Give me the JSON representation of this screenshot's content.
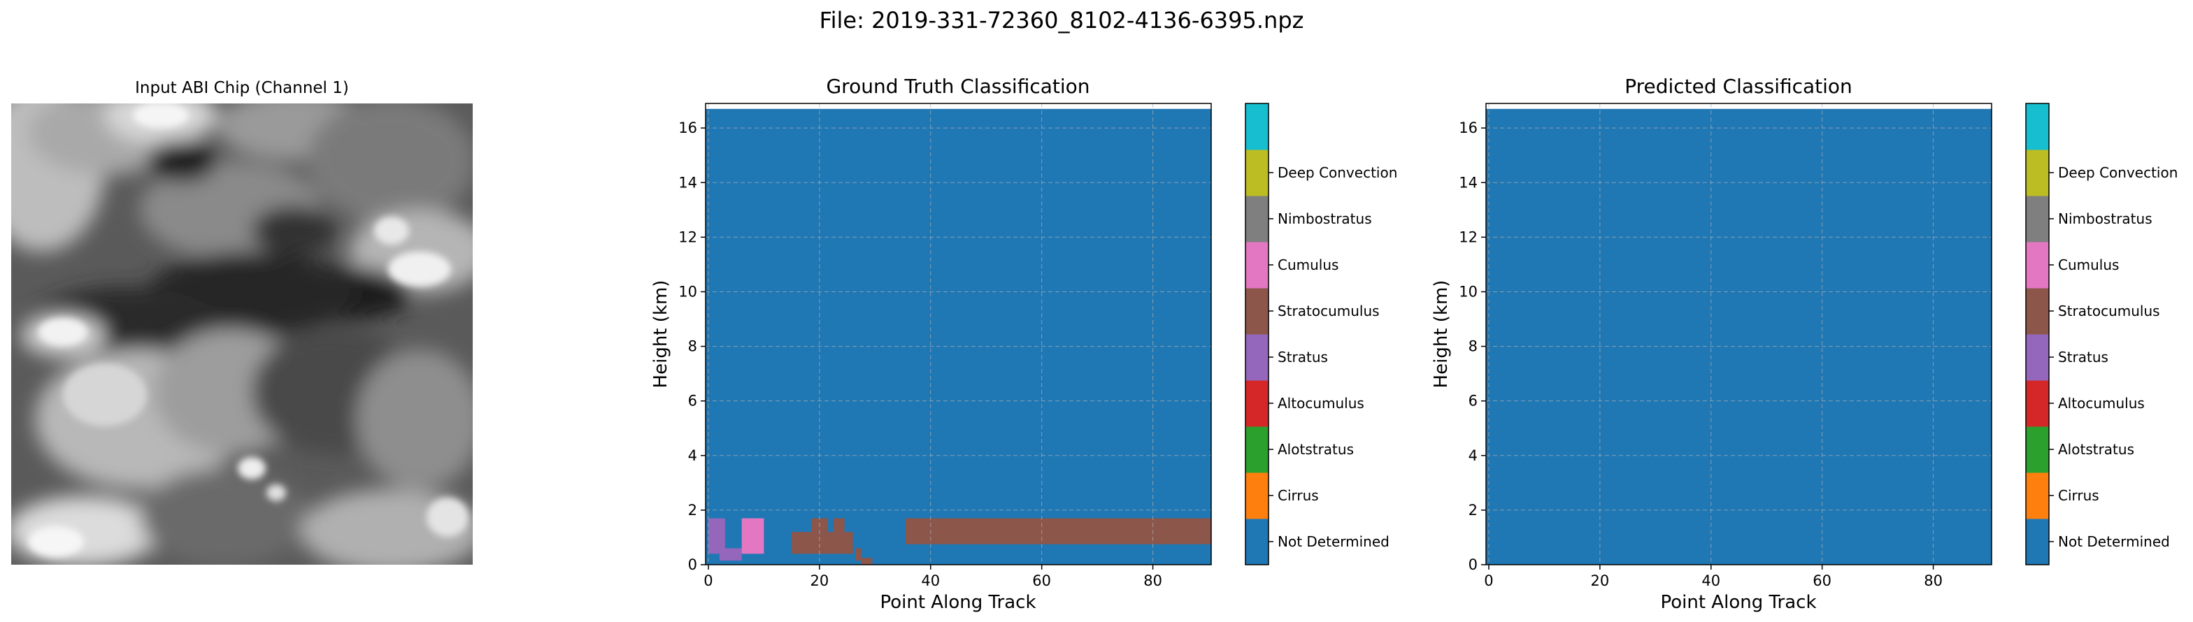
{
  "figure_title": "File: 2019-331-72360_8102-4136-6395.npz",
  "panels": {
    "input_title": "Input ABI Chip (Channel 1)",
    "gt_title": "Ground Truth Classification",
    "pred_title": "Predicted Classification"
  },
  "axes": {
    "xlabel": "Point Along Track",
    "ylabel": "Height (km)",
    "x_ticks": [
      "0",
      "20",
      "40",
      "60",
      "80"
    ],
    "y_ticks": [
      "0",
      "2",
      "4",
      "6",
      "8",
      "10",
      "12",
      "14",
      "16"
    ]
  },
  "colorbar_labels": [
    "Not Determined",
    "Cirrus",
    "Alotstratus",
    "Altocumulus",
    "Stratus",
    "Stratocumulus",
    "Cumulus",
    "Nimbostratus",
    "Deep Convection"
  ],
  "colors": [
    "#1f77b4",
    "#ff7f0e",
    "#2ca02c",
    "#d62728",
    "#9467bd",
    "#8c564b",
    "#e377c2",
    "#7f7f7f",
    "#bcbd22",
    "#17becf"
  ],
  "chart_data": [
    {
      "type": "image",
      "title": "Input ABI Chip (Channel 1)",
      "colormap": "gray"
    },
    {
      "type": "heatmap",
      "title": "Ground Truth Classification",
      "xlabel": "Point Along Track",
      "ylabel": "Height (km)",
      "xlim": [
        -0.5,
        90.5
      ],
      "ylim": [
        0,
        16.9
      ],
      "grid": true,
      "background_class": "Not Determined",
      "cells": [
        {
          "class": "Stratus",
          "x0": 0,
          "x1": 3,
          "y0": 0.4,
          "y1": 1.7
        },
        {
          "class": "Stratus",
          "x0": 2,
          "x1": 6,
          "y0": 0.15,
          "y1": 0.6
        },
        {
          "class": "Cumulus",
          "x0": 6,
          "x1": 10,
          "y0": 0.4,
          "y1": 1.7
        },
        {
          "class": "Stratocumulus",
          "x0": 15,
          "x1": 26,
          "y0": 0.4,
          "y1": 1.2
        },
        {
          "class": "Stratocumulus",
          "x0": 18.5,
          "x1": 21.5,
          "y0": 1.2,
          "y1": 1.7
        },
        {
          "class": "Stratocumulus",
          "x0": 22.5,
          "x1": 24.5,
          "y0": 1.2,
          "y1": 1.7
        },
        {
          "class": "Stratocumulus",
          "x0": 26.5,
          "x1": 27.5,
          "y0": 0.15,
          "y1": 0.6
        },
        {
          "class": "Stratocumulus",
          "x0": 27.5,
          "x1": 29.5,
          "y0": 0.0,
          "y1": 0.25
        },
        {
          "class": "Stratocumulus",
          "x0": 35.5,
          "x1": 90.5,
          "y0": 0.75,
          "y1": 1.7
        }
      ],
      "colorbar": [
        "Not Determined",
        "Cirrus",
        "Alotstratus",
        "Altocumulus",
        "Stratus",
        "Stratocumulus",
        "Cumulus",
        "Nimbostratus",
        "Deep Convection"
      ]
    },
    {
      "type": "heatmap",
      "title": "Predicted Classification",
      "xlabel": "Point Along Track",
      "ylabel": "Height (km)",
      "xlim": [
        -0.5,
        90.5
      ],
      "ylim": [
        0,
        16.9
      ],
      "grid": true,
      "background_class": "Not Determined",
      "cells": [],
      "colorbar": [
        "Not Determined",
        "Cirrus",
        "Alotstratus",
        "Altocumulus",
        "Stratus",
        "Stratocumulus",
        "Cumulus",
        "Nimbostratus",
        "Deep Convection"
      ]
    }
  ]
}
